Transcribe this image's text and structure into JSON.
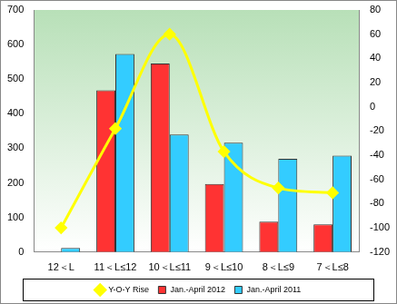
{
  "chart_data": {
    "type": "bar",
    "categories": [
      "12＜L",
      "11＜L≤12",
      "10＜L≤11",
      "9＜L≤10",
      "8＜L≤9",
      "7＜L≤8"
    ],
    "series": [
      {
        "name": "Jan.-April 2012",
        "color": "#ff3333",
        "values": [
          0,
          468,
          545,
          197,
          88,
          80
        ]
      },
      {
        "name": "Jan.-April 2011",
        "color": "#33ccff",
        "values": [
          12,
          573,
          340,
          316,
          270,
          279
        ]
      },
      {
        "name": "Y-O-Y Rise",
        "color": "#ffff00",
        "type": "line",
        "axis": "y2",
        "marker": "diamond",
        "values": [
          -100,
          -18,
          60,
          -37,
          -67,
          -71
        ]
      }
    ],
    "ylim": [
      0,
      700
    ],
    "yticks": [
      0,
      100,
      200,
      300,
      400,
      500,
      600,
      700
    ],
    "y2lim": [
      -120,
      80
    ],
    "y2ticks": [
      -120,
      -100,
      -80,
      -60,
      -40,
      -20,
      0,
      20,
      40,
      60,
      80
    ],
    "grid": false,
    "legend": "bottom"
  }
}
